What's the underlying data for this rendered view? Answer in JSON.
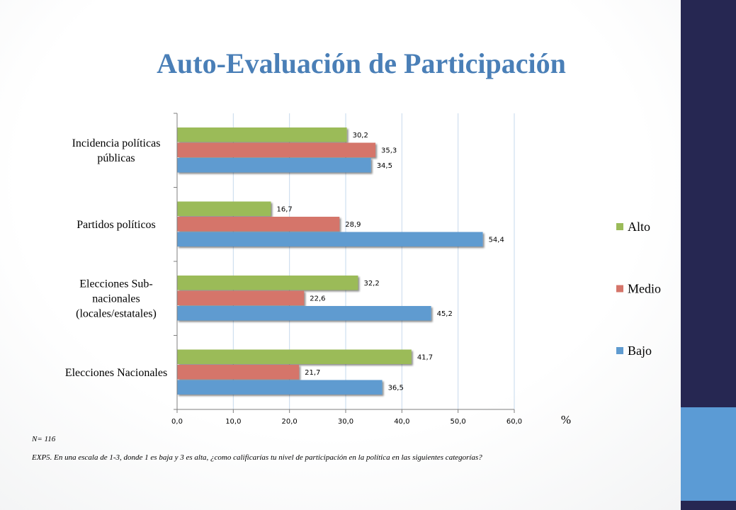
{
  "slide": {
    "title": "Auto-Evaluación de Participación",
    "n_note": "N= 116",
    "question_note": "EXP5. En una escala de 1-3, donde 1 es baja y 3 es alta, ¿como calificarías tu nivel de participación en la política en las siguientes categorías?",
    "unit_label": "%"
  },
  "chart_data": {
    "type": "bar",
    "orientation": "horizontal",
    "categories": [
      [
        "Incidencia políticas",
        "públicas"
      ],
      [
        "Partidos políticos"
      ],
      [
        "Elecciones Sub-",
        "nacionales",
        "(locales/estatales)"
      ],
      [
        "Elecciones Nacionales"
      ]
    ],
    "series": [
      {
        "name": "Alto",
        "color": "#9bbb59",
        "values": [
          30.2,
          16.7,
          32.2,
          41.7
        ],
        "labels": [
          "30,2",
          "16,7",
          "32,2",
          "41,7"
        ]
      },
      {
        "name": "Medio",
        "color": "#d5756a",
        "values": [
          35.3,
          28.9,
          22.6,
          21.7
        ],
        "labels": [
          "35,3",
          "28,9",
          "22,6",
          "21,7"
        ]
      },
      {
        "name": "Bajo",
        "color": "#5f9bd0",
        "values": [
          34.5,
          54.4,
          45.2,
          36.5
        ],
        "labels": [
          "34,5",
          "54,4",
          "45,2",
          "36,5"
        ]
      }
    ],
    "xlim": [
      0,
      60
    ],
    "xticks": [
      "0,0",
      "10,0",
      "20,0",
      "30,0",
      "40,0",
      "50,0",
      "60,0"
    ],
    "grid": true,
    "legend": {
      "position": "right",
      "order": [
        "Alto",
        "Medio",
        "Bajo"
      ]
    }
  }
}
